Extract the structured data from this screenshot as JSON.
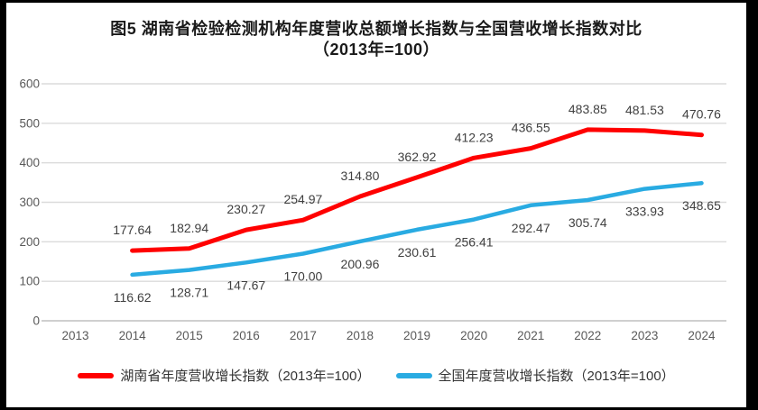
{
  "chart_data": {
    "type": "line",
    "title_line1": "图5 湖南省检验检测机构年度营收总额增长指数与全国营收增长指数对比",
    "title_line2": "（2013年=100）",
    "categories": [
      "2013",
      "2014",
      "2015",
      "2016",
      "2017",
      "2018",
      "2019",
      "2020",
      "2021",
      "2022",
      "2023",
      "2024"
    ],
    "series": [
      {
        "name": "湖南省年度营收增长指数（2013年=100）",
        "color": "#FF0000",
        "label_position": "above",
        "values": [
          null,
          177.64,
          182.94,
          230.27,
          254.97,
          314.8,
          362.92,
          412.23,
          436.55,
          483.85,
          481.53,
          470.76
        ]
      },
      {
        "name": "全国年度营收增长指数（2013年=100）",
        "color": "#29ABE2",
        "label_position": "below",
        "values": [
          null,
          116.62,
          128.71,
          147.67,
          170.0,
          200.96,
          230.61,
          256.41,
          292.47,
          305.74,
          333.93,
          348.65
        ]
      }
    ],
    "ylim": [
      0,
      600
    ],
    "yticks": [
      0,
      100,
      200,
      300,
      400,
      500,
      600
    ],
    "grid": true,
    "legend_position": "bottom",
    "label_decimals": 2,
    "colors": {
      "gridline": "#DBDBDB",
      "axis_line": "#BFBFBF",
      "tick_label": "#595959",
      "data_label": "#404040"
    }
  }
}
